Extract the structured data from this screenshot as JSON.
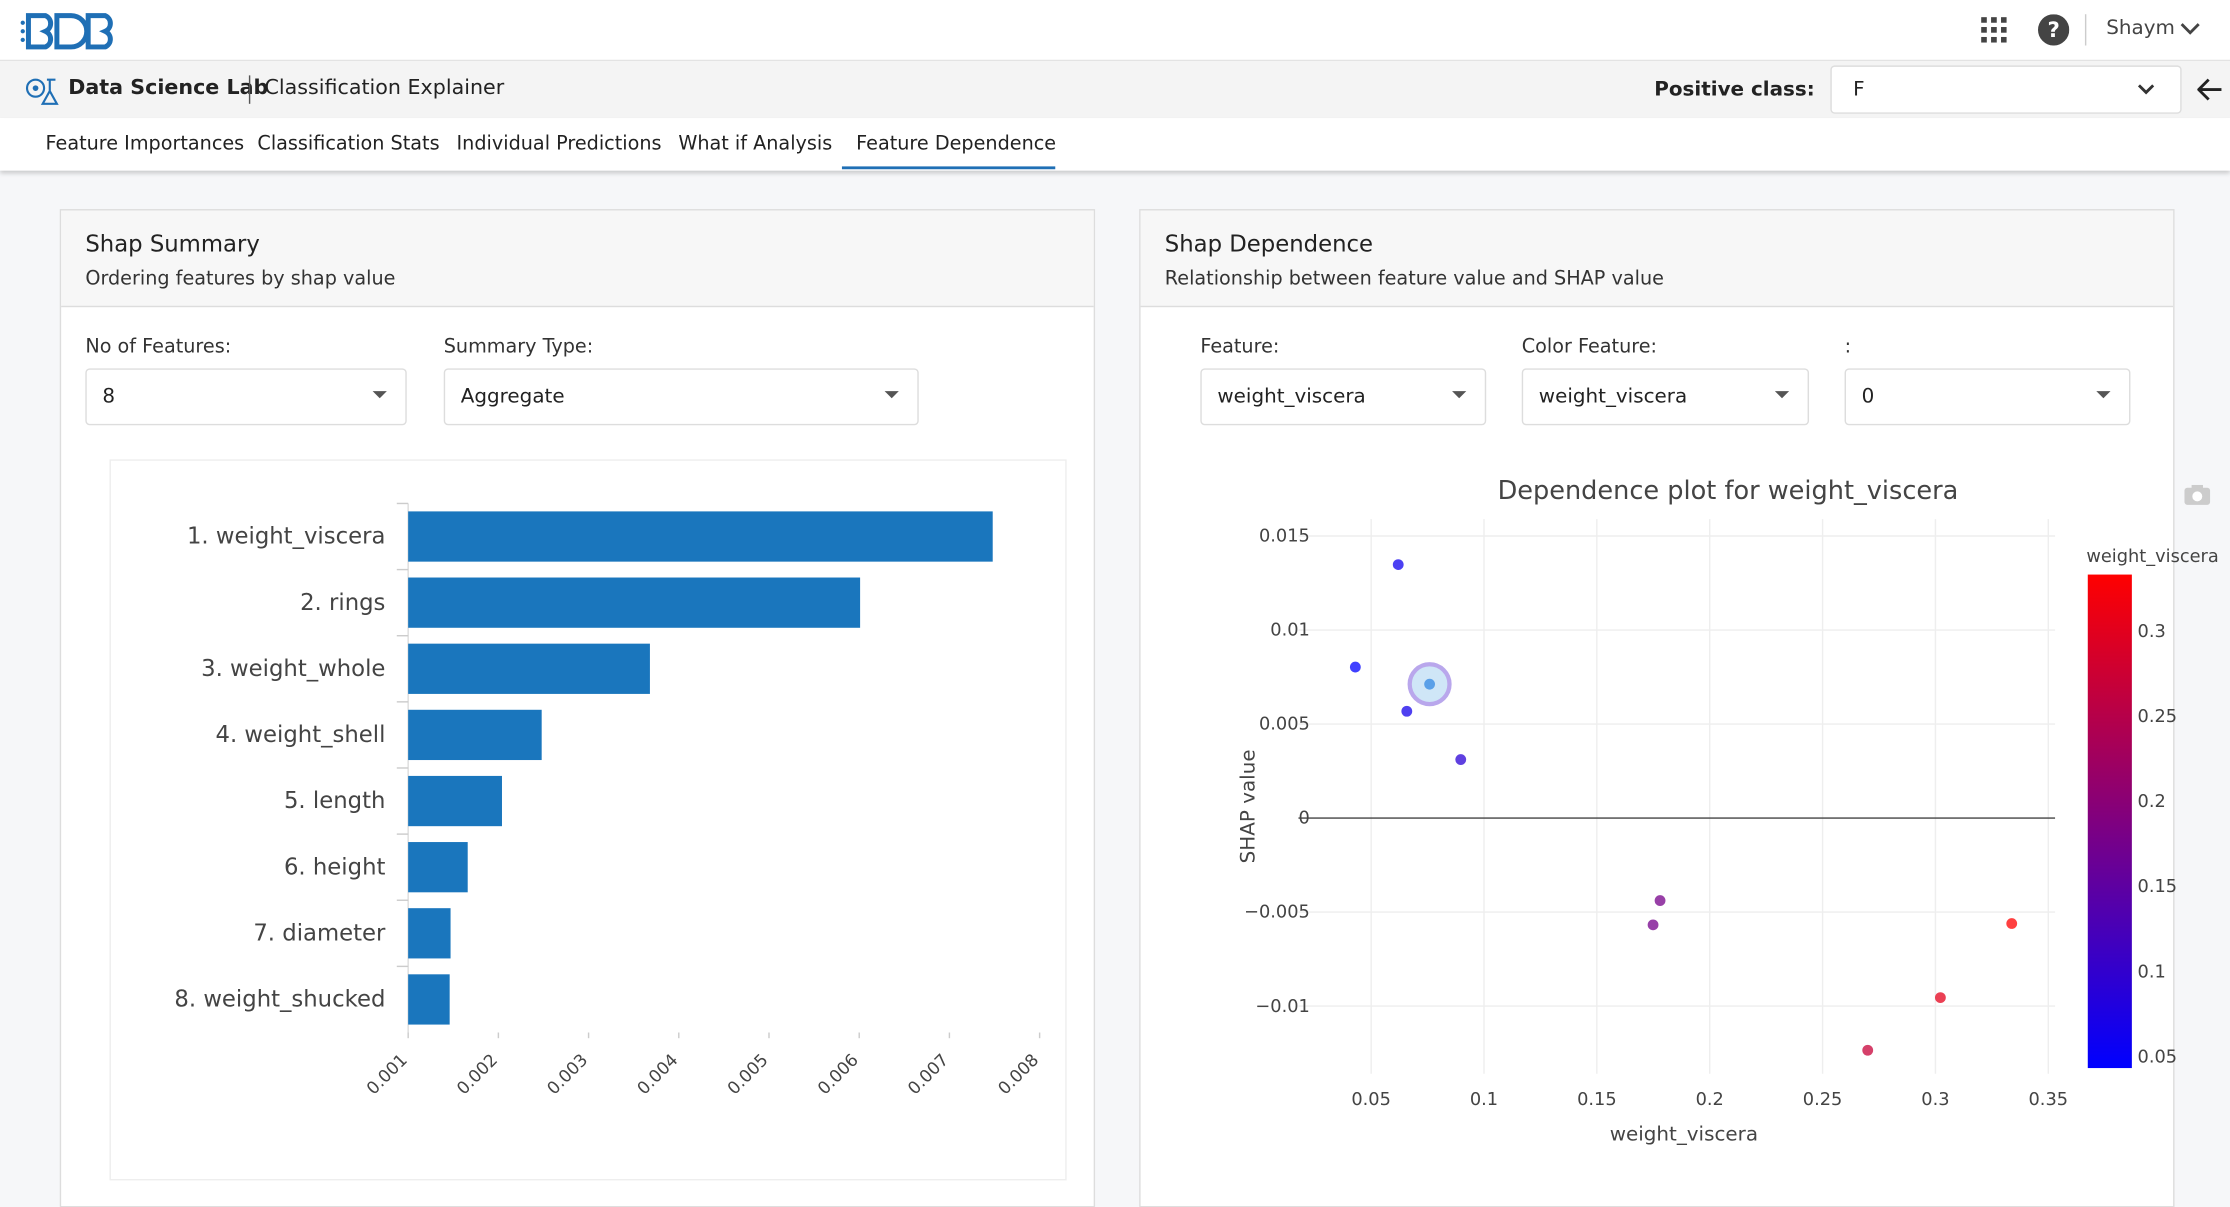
{
  "header": {
    "user": "Shaym"
  },
  "subheader": {
    "app": "Data Science Lab",
    "page": "Classification Explainer",
    "positive_class_label": "Positive class:",
    "positive_class_value": "F"
  },
  "tabs": [
    "Feature Importances",
    "Classification Stats",
    "Individual Predictions",
    "What if Analysis",
    "Feature Dependence"
  ],
  "panels": [
    {
      "title": "Shap Summary",
      "subtitle": "Ordering features by shap value",
      "controls": [
        {
          "label": "No of Features:",
          "value": "8"
        },
        {
          "label": "Summary Type:",
          "value": "Aggregate"
        }
      ]
    },
    {
      "title": "Shap Dependence",
      "subtitle": "Relationship between feature value and SHAP value",
      "controls": [
        {
          "label": "Feature:",
          "value": "weight_viscera"
        },
        {
          "label": "Color Feature:",
          "value": "weight_viscera"
        },
        {
          "label": ":",
          "value": "0"
        }
      ]
    }
  ],
  "chart_data": [
    {
      "type": "bar",
      "orientation": "horizontal",
      "categories": [
        "1. weight_viscera",
        "2. rings",
        "3. weight_whole",
        "4. weight_shell",
        "5. length",
        "6. height",
        "7. diameter",
        "8. weight_shucked"
      ],
      "values": [
        0.00748,
        0.00601,
        0.00368,
        0.00248,
        0.00204,
        0.00166,
        0.00147,
        0.00146
      ],
      "color": "#1a76bd",
      "xlim": [
        0.001,
        0.008
      ],
      "xticks": [
        0.001,
        0.002,
        0.003,
        0.004,
        0.005,
        0.006,
        0.007,
        0.008
      ]
    },
    {
      "type": "scatter",
      "title": "Dependence plot for weight_viscera",
      "x_label": "weight_viscera",
      "y_label": "SHAP value",
      "x": [
        0.062,
        0.043,
        0.0759,
        0.0658,
        0.0897,
        0.178,
        0.1749,
        0.3338,
        0.3022,
        0.27
      ],
      "y": [
        0.01348,
        0.00803,
        0.00712,
        0.00568,
        0.00311,
        -0.00439,
        -0.00568,
        -0.00561,
        -0.00955,
        -0.01235
      ],
      "xlim": [
        0.0178,
        0.353
      ],
      "xticks": [
        0.05,
        0.1,
        0.15,
        0.2,
        0.25,
        0.3,
        0.35
      ],
      "ylim": [
        -0.0136,
        0.0159
      ],
      "yticks": [
        0.015,
        0.01,
        0.005,
        0,
        {
          "value": -0.005,
          "label": "−0.005"
        },
        {
          "value": -0.01,
          "label": "−0.01"
        }
      ],
      "grid": true,
      "colorbar_title": "weight_viscera",
      "colorscale": [
        "#0000ff",
        "#ff0000"
      ],
      "colorlim": [
        0.0433,
        0.3333
      ],
      "colorticks": [
        0.05,
        0.1,
        0.15,
        0.2,
        0.25,
        0.3
      ]
    }
  ]
}
